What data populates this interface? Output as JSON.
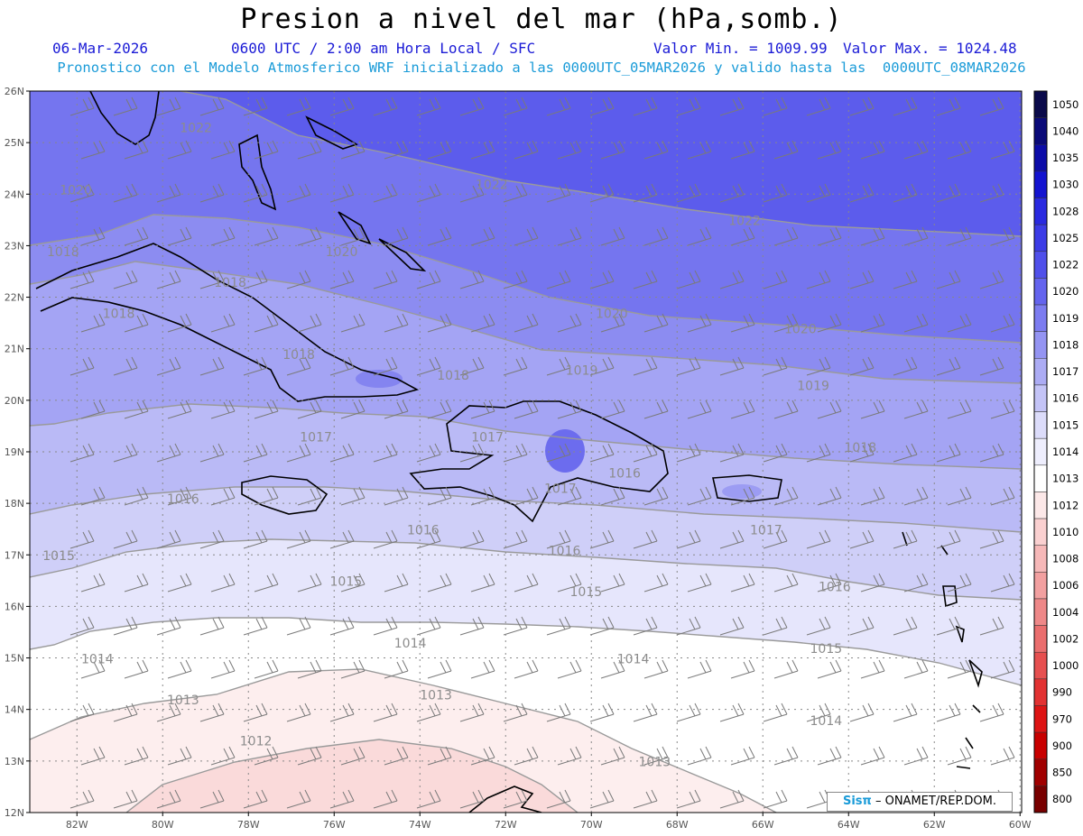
{
  "header": {
    "title": "Presion a nivel del mar (hPa,somb.)",
    "date": "06-Mar-2026",
    "time": "0600 UTC / 2:00 am Hora Local / SFC",
    "valor_min": "Valor Min. = 1009.99",
    "valor_max": "Valor Max. = 1024.48",
    "model_line": "Pronostico con el Modelo Atmosferico WRF inicializado a las 0000UTC_05MAR2026 y valido hasta las  0000UTC_08MAR2026"
  },
  "axes": {
    "lat_labels": [
      "26N",
      "25N",
      "24N",
      "23N",
      "22N",
      "21N",
      "20N",
      "19N",
      "18N",
      "17N",
      "16N",
      "15N",
      "14N",
      "13N",
      "12N"
    ],
    "lon_labels": [
      "82W",
      "80W",
      "78W",
      "76W",
      "74W",
      "72W",
      "70W",
      "68W",
      "66W",
      "64W",
      "62W",
      "60W"
    ]
  },
  "colorbar": {
    "levels": [
      "1050",
      "1040",
      "1035",
      "1030",
      "1028",
      "1025",
      "1022",
      "1020",
      "1019",
      "1018",
      "1017",
      "1016",
      "1015",
      "1014",
      "1013",
      "1012",
      "1010",
      "1008",
      "1006",
      "1004",
      "1002",
      "1000",
      "990",
      "970",
      "900",
      "850",
      "800"
    ],
    "colors": [
      "#0a0a4a",
      "#0a0a78",
      "#0c0ca8",
      "#1414d0",
      "#2a2ae0",
      "#3c3ce6",
      "#5050ea",
      "#6464ee",
      "#7c7cf0",
      "#9494f2",
      "#acacf4",
      "#c4c4f7",
      "#dcdcfa",
      "#eeeefd",
      "#ffffff",
      "#fce8e8",
      "#fad0d0",
      "#f6b8b8",
      "#f2a0a0",
      "#ee8888",
      "#ea6e6e",
      "#e65050",
      "#e23232",
      "#dd1414",
      "#c80000",
      "#a00000",
      "#780000"
    ]
  },
  "contour_labels": [
    {
      "text": "1022",
      "lon": -79.6,
      "lat": 25.2
    },
    {
      "text": "1022",
      "lon": -72.7,
      "lat": 24.1
    },
    {
      "text": "1022",
      "lon": -66.8,
      "lat": 23.4
    },
    {
      "text": "1020",
      "lon": -82.4,
      "lat": 24.0
    },
    {
      "text": "1020",
      "lon": -76.2,
      "lat": 22.8
    },
    {
      "text": "1020",
      "lon": -69.9,
      "lat": 21.6
    },
    {
      "text": "1020",
      "lon": -65.5,
      "lat": 21.3
    },
    {
      "text": "1018",
      "lon": -82.7,
      "lat": 22.8
    },
    {
      "text": "1018",
      "lon": -78.8,
      "lat": 22.2
    },
    {
      "text": "1018",
      "lon": -81.4,
      "lat": 21.6
    },
    {
      "text": "1018",
      "lon": -77.2,
      "lat": 20.8
    },
    {
      "text": "1018",
      "lon": -73.6,
      "lat": 20.4
    },
    {
      "text": "1019",
      "lon": -70.6,
      "lat": 20.5
    },
    {
      "text": "1019",
      "lon": -65.2,
      "lat": 20.2
    },
    {
      "text": "1018",
      "lon": -64.1,
      "lat": 19.0
    },
    {
      "text": "1017",
      "lon": -76.8,
      "lat": 19.2
    },
    {
      "text": "1017",
      "lon": -72.8,
      "lat": 19.2
    },
    {
      "text": "1017",
      "lon": -71.1,
      "lat": 18.2
    },
    {
      "text": "1017",
      "lon": -66.3,
      "lat": 17.4
    },
    {
      "text": "1016",
      "lon": -69.6,
      "lat": 18.5
    },
    {
      "text": "1016",
      "lon": -79.9,
      "lat": 18.0
    },
    {
      "text": "1016",
      "lon": -74.3,
      "lat": 17.4
    },
    {
      "text": "1016",
      "lon": -71.0,
      "lat": 17.0
    },
    {
      "text": "1016",
      "lon": -64.7,
      "lat": 16.3
    },
    {
      "text": "1015",
      "lon": -82.8,
      "lat": 16.9
    },
    {
      "text": "1015",
      "lon": -76.1,
      "lat": 16.4
    },
    {
      "text": "1015",
      "lon": -70.5,
      "lat": 16.2
    },
    {
      "text": "1015",
      "lon": -64.9,
      "lat": 15.1
    },
    {
      "text": "1014",
      "lon": -74.6,
      "lat": 15.2
    },
    {
      "text": "1014",
      "lon": -81.9,
      "lat": 14.9
    },
    {
      "text": "1014",
      "lon": -69.4,
      "lat": 14.9
    },
    {
      "text": "1014",
      "lon": -64.9,
      "lat": 13.7
    },
    {
      "text": "1013",
      "lon": -79.9,
      "lat": 14.1
    },
    {
      "text": "1013",
      "lon": -74.0,
      "lat": 14.2
    },
    {
      "text": "1013",
      "lon": -68.9,
      "lat": 12.9
    },
    {
      "text": "1012",
      "lon": -78.2,
      "lat": 13.3
    }
  ],
  "credit": {
    "logo": "Sisπ",
    "text": "– ONAMET/REP.DOM."
  }
}
